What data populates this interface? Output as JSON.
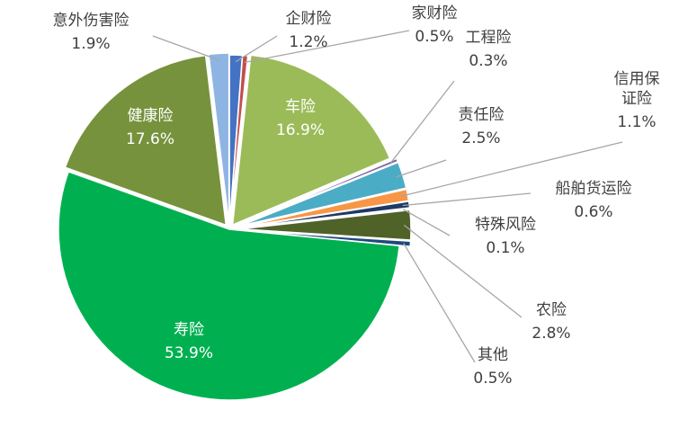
{
  "chart_data": {
    "type": "pie",
    "title": "",
    "slices": [
      {
        "name": "企财险",
        "value": 1.2,
        "label": "1.2%",
        "color": "#4472c4"
      },
      {
        "name": "家财险",
        "value": 0.5,
        "label": "0.5%",
        "color": "#c0504d"
      },
      {
        "name": "车险",
        "value": 16.9,
        "label": "16.9%",
        "color": "#9bbb59"
      },
      {
        "name": "工程险",
        "value": 0.3,
        "label": "0.3%",
        "color": "#8064a2"
      },
      {
        "name": "责任险",
        "value": 2.5,
        "label": "2.5%",
        "color": "#4bacc6"
      },
      {
        "name": "信用保证险",
        "value": 1.1,
        "label": "1.1%",
        "color": "#f79646",
        "label_lines": [
          "信用保",
          "证险"
        ]
      },
      {
        "name": "船舶货运险",
        "value": 0.6,
        "label": "0.6%",
        "color": "#1f3864"
      },
      {
        "name": "特殊风险",
        "value": 0.1,
        "label": "0.1%",
        "color": "#7f7f7f"
      },
      {
        "name": "农险",
        "value": 2.8,
        "label": "2.8%",
        "color": "#4f6228"
      },
      {
        "name": "其他",
        "value": 0.5,
        "label": "0.5%",
        "color": "#1f497d"
      },
      {
        "name": "寿险",
        "value": 53.9,
        "label": "53.9%",
        "color": "#00b050"
      },
      {
        "name": "健康险",
        "value": 17.6,
        "label": "17.6%",
        "color": "#76923c"
      },
      {
        "name": "意外伤害险",
        "value": 1.9,
        "label": "1.9%",
        "color": "#8eb4e3"
      }
    ]
  }
}
